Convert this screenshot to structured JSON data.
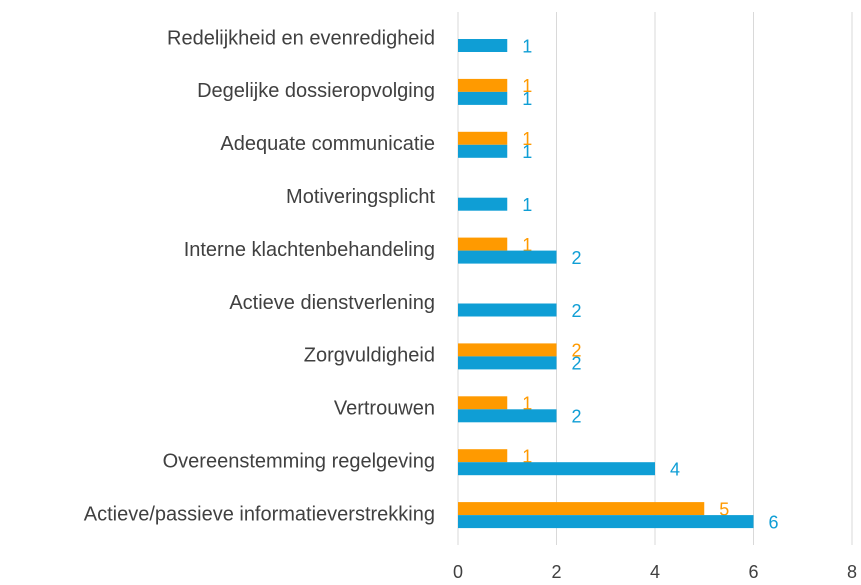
{
  "chart_data": {
    "type": "barh",
    "categories": [
      "Redelijkheid en evenredigheid",
      "Degelijke dossieropvolging",
      "Adequate communicatie",
      "Motiveringsplicht",
      "Interne klachtenbehandeling",
      "Actieve dienstverlening",
      "Zorgvuldigheid",
      "Vertrouwen",
      "Overeenstemming regelgeving",
      "Actieve/passieve informatieverstrekking"
    ],
    "series": [
      {
        "color": "#ff9a00",
        "values": [
          null,
          1,
          1,
          null,
          1,
          null,
          2,
          1,
          1,
          5
        ]
      },
      {
        "color": "#0f9ed5",
        "values": [
          1,
          1,
          1,
          1,
          2,
          2,
          2,
          2,
          4,
          6
        ]
      }
    ],
    "xlim": [
      0,
      8
    ],
    "xticks": [
      0,
      2,
      4,
      6,
      8
    ],
    "grid": true
  }
}
